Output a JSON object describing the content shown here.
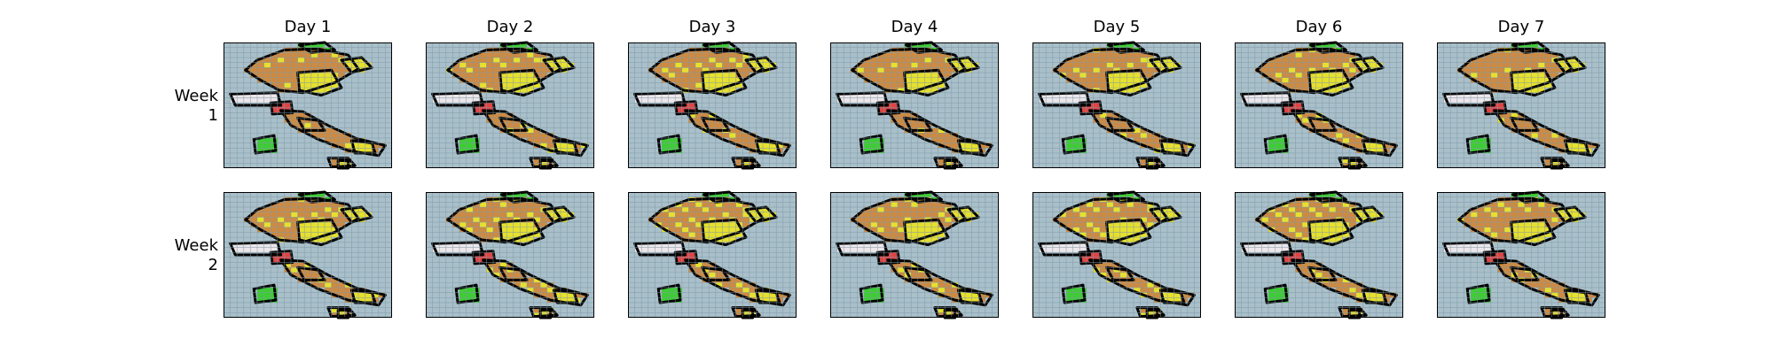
{
  "chart_data": {
    "type": "heatmap",
    "title": "",
    "layout": "small multiples grid (2 rows x 7 columns)",
    "column_titles": [
      "Day 1",
      "Day 2",
      "Day 3",
      "Day 4",
      "Day 5",
      "Day 6",
      "Day 7"
    ],
    "row_labels": [
      "Week 1",
      "Week 2"
    ],
    "colors": {
      "water": "#a9c0cb",
      "grid_line": "#7f97a3",
      "brown": "#cd8a42",
      "yellow": "#e6e02f",
      "green": "#3ccd32",
      "white": "#ece6ea",
      "red": "#e04343",
      "border": "#000000"
    },
    "grid": true,
    "legend": "none"
  }
}
